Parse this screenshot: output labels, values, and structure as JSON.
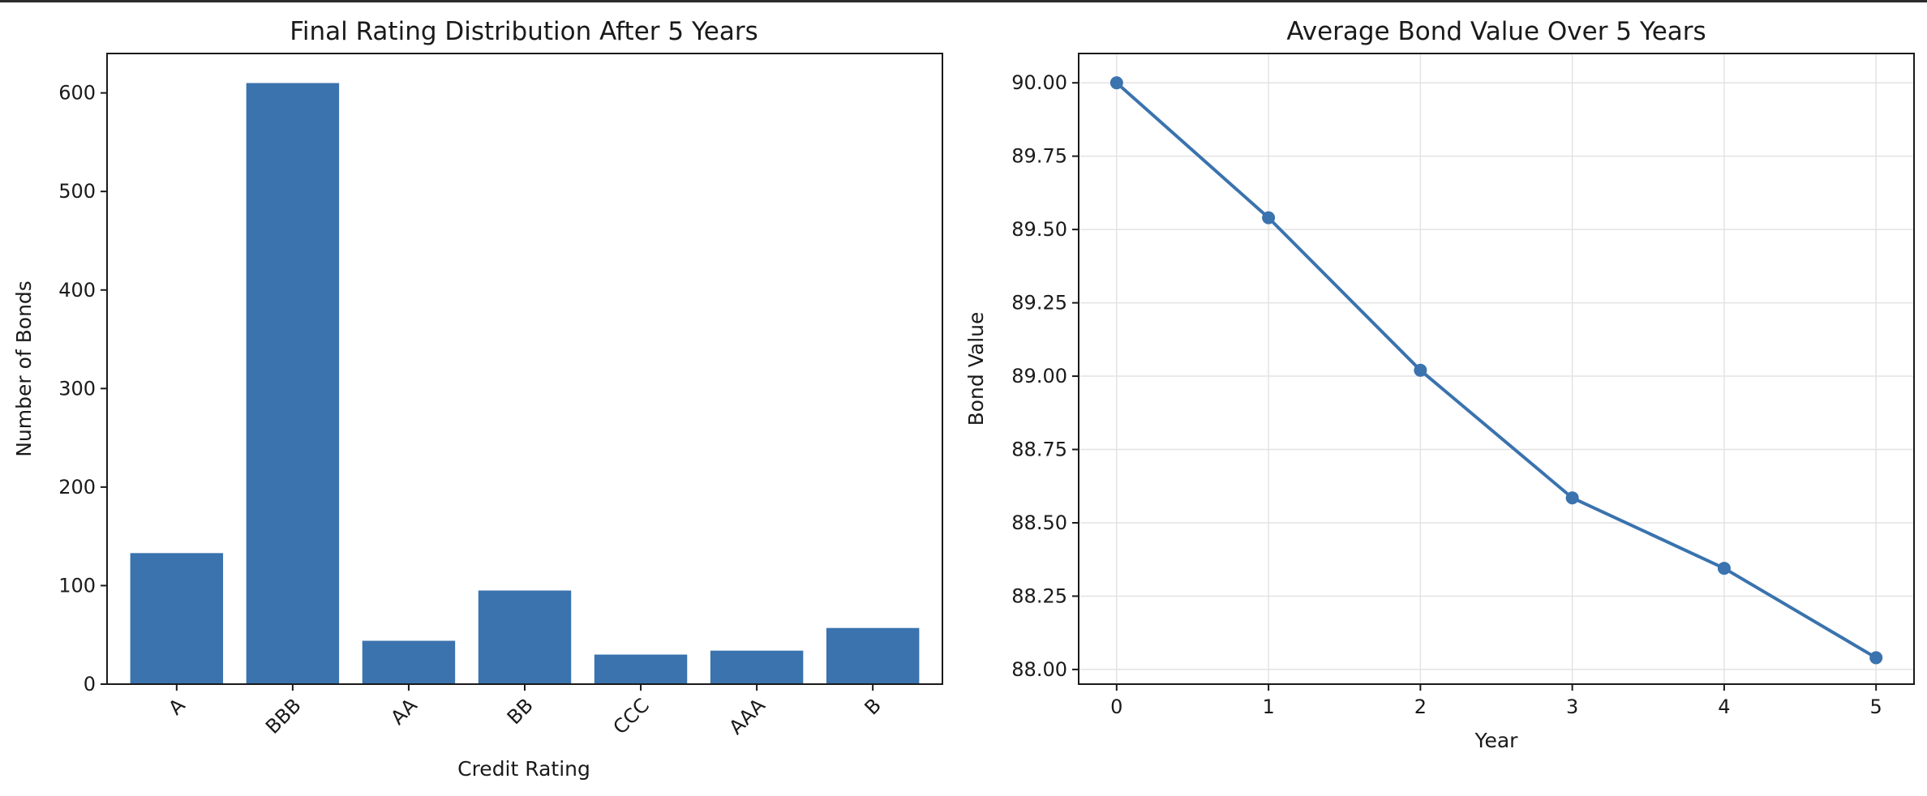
{
  "chart_data": [
    {
      "type": "bar",
      "title": "Final Rating Distribution After 5 Years",
      "xlabel": "Credit Rating",
      "ylabel": "Number of Bonds",
      "categories": [
        "A",
        "BBB",
        "AA",
        "BB",
        "CCC",
        "AAA",
        "B"
      ],
      "values": [
        133,
        610,
        44,
        95,
        30,
        34,
        57
      ],
      "ylim": [
        0,
        640
      ],
      "yticks": [
        0,
        100,
        200,
        300,
        400,
        500,
        600
      ],
      "grid": false,
      "color": "#3a73ae"
    },
    {
      "type": "line",
      "title": "Average Bond Value Over 5 Years",
      "xlabel": "Year",
      "ylabel": "Bond Value",
      "x": [
        0,
        1,
        2,
        3,
        4,
        5
      ],
      "y": [
        90.0,
        89.54,
        89.02,
        88.585,
        88.345,
        88.04
      ],
      "xlim": [
        -0.25,
        5.25
      ],
      "ylim": [
        87.95,
        90.1
      ],
      "xticks": [
        0,
        1,
        2,
        3,
        4,
        5
      ],
      "yticks": [
        88.0,
        88.25,
        88.5,
        88.75,
        89.0,
        89.25,
        89.5,
        89.75,
        90.0
      ],
      "ytick_labels": [
        "88.00",
        "88.25",
        "88.50",
        "88.75",
        "89.00",
        "89.25",
        "89.50",
        "89.75",
        "90.00"
      ],
      "grid": true,
      "marker": "circle",
      "color": "#3a73ae"
    }
  ]
}
